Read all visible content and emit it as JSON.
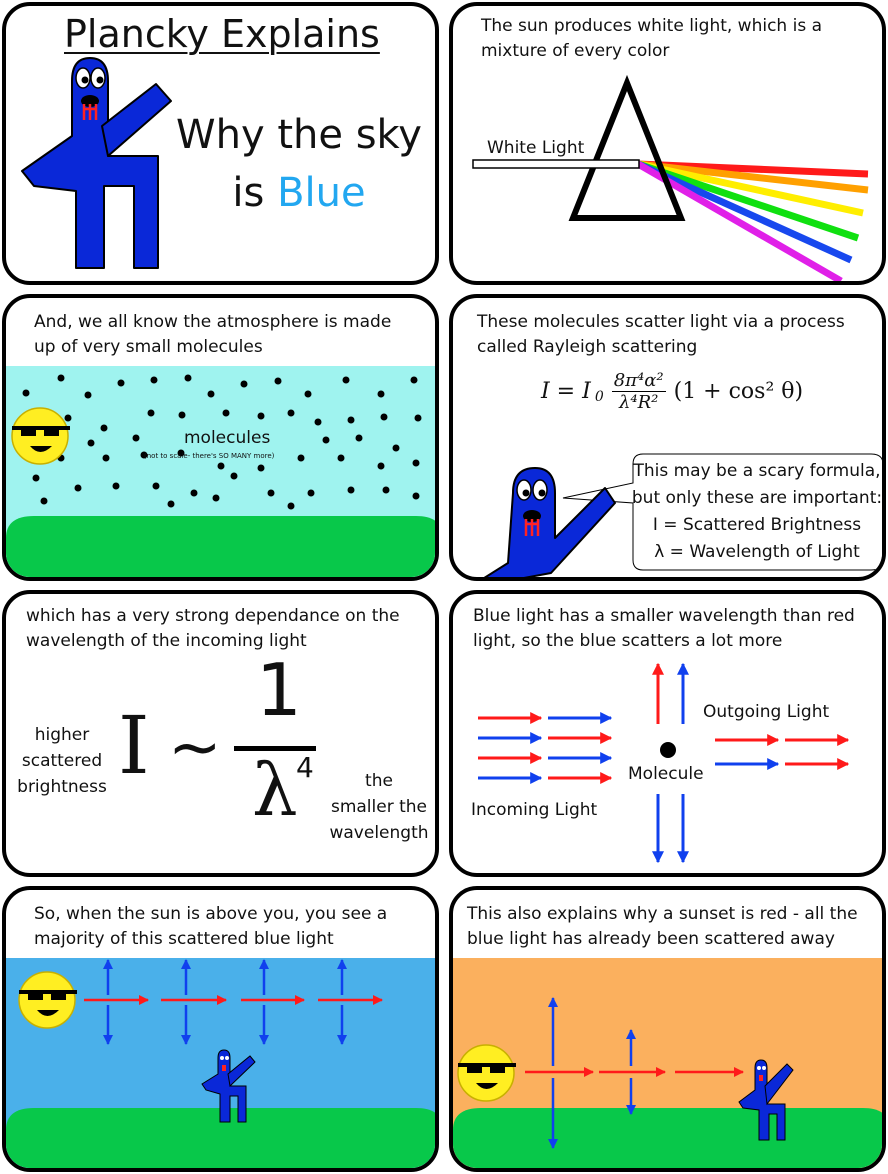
{
  "p1": {
    "title": "Plancky Explains",
    "line1": "Why the sky",
    "line2_pre": "is",
    "line2_word": "Blue"
  },
  "p2": {
    "caption": "The sun produces white light, which is a mixture of every color",
    "label": "White Light"
  },
  "p3": {
    "caption": "And, we all know the atmosphere is made up of very small molecules",
    "label": "molecules",
    "note": "(not to scale- there's SO MANY more)"
  },
  "p4": {
    "caption": "These molecules scatter light via a process called Rayleigh scattering",
    "formula_lhs": "I = I",
    "formula_sub": "0",
    "formula_num": "8π⁴α²",
    "formula_den": "λ⁴R²",
    "formula_tail": "(1 + cos² θ)",
    "bubble1": "This may be a scary formula,",
    "bubble2": "but only these are important:",
    "bubble3": "I = Scattered Brightness",
    "bubble4": "λ = Wavelength of Light"
  },
  "p5": {
    "caption": "which has a very strong dependance on the wavelength of the incoming light",
    "left1": "higher",
    "left2": "scattered",
    "left3": "brightness",
    "I": "I",
    "tilde": "~",
    "num": "1",
    "lambda": "λ",
    "exp": "4",
    "right1": "the",
    "right2": "smaller the",
    "right3": "wavelength"
  },
  "p6": {
    "caption": "Blue light has a smaller wavelength than red light, so the blue scatters a lot more",
    "outgoing": "Outgoing Light",
    "molecule": "Molecule",
    "incoming": "Incoming Light"
  },
  "p7": {
    "caption": "So, when the sun is above you, you see a majority of this scattered blue light"
  },
  "p8": {
    "caption": "This also explains why a sunset is red - all the blue light has already been scattered away"
  },
  "colors": {
    "plancky": "#0a28d8",
    "sky": "#4ab0ea",
    "sunset": "#fbb05e",
    "grass": "#08c84a",
    "cyan": "#9ff3ef",
    "sun": "#ffee22",
    "red": "#ff1a1a",
    "blue": "#1040ee"
  }
}
